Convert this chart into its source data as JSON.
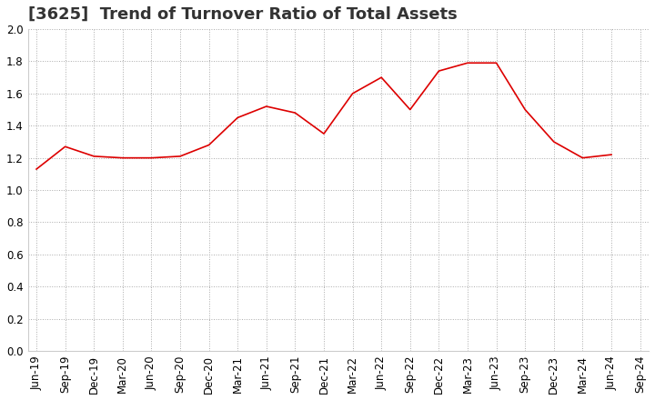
{
  "title": "[3625]  Trend of Turnover Ratio of Total Assets",
  "x_labels": [
    "Jun-19",
    "Sep-19",
    "Dec-19",
    "Mar-20",
    "Jun-20",
    "Sep-20",
    "Dec-20",
    "Mar-21",
    "Jun-21",
    "Sep-21",
    "Dec-21",
    "Mar-22",
    "Jun-22",
    "Sep-22",
    "Dec-22",
    "Mar-23",
    "Jun-23",
    "Sep-23",
    "Dec-23",
    "Mar-24",
    "Jun-24",
    "Sep-24"
  ],
  "y_values": [
    1.13,
    1.27,
    1.21,
    1.2,
    1.2,
    1.21,
    1.28,
    1.45,
    1.52,
    1.48,
    1.35,
    1.6,
    1.7,
    1.5,
    1.74,
    1.79,
    1.79,
    1.5,
    1.3,
    1.2,
    1.22,
    null
  ],
  "line_color": "#dd0000",
  "ylim": [
    0.0,
    2.0
  ],
  "yticks": [
    0.0,
    0.2,
    0.4,
    0.6,
    0.8,
    1.0,
    1.2,
    1.4,
    1.6,
    1.8,
    2.0
  ],
  "grid_color": "#aaaaaa",
  "background_color": "#ffffff",
  "title_fontsize": 13,
  "tick_fontsize": 8.5,
  "title_color": "#333333"
}
